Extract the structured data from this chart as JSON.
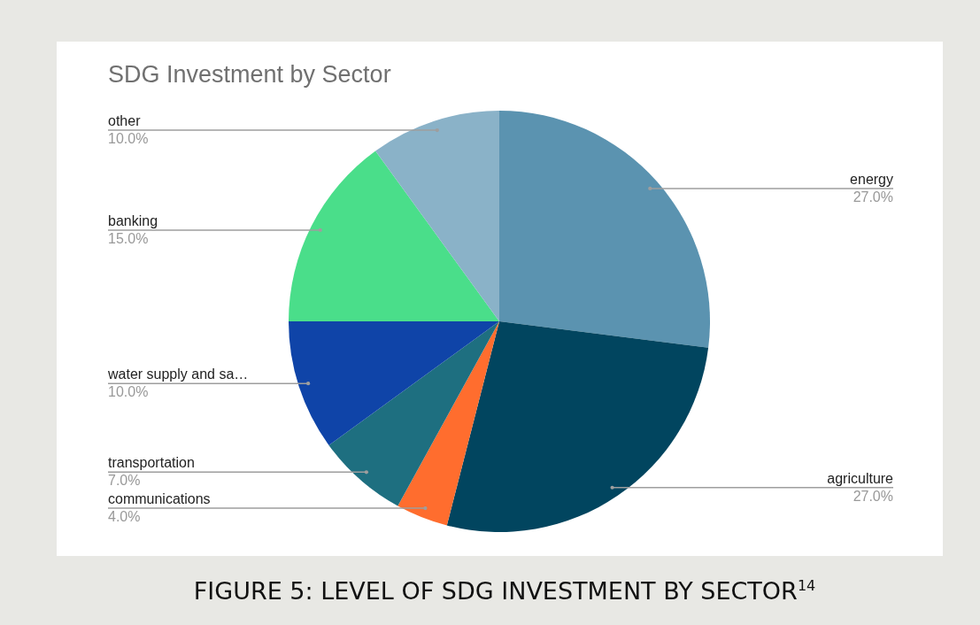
{
  "chart_data": {
    "type": "pie",
    "title": "SDG Investment by Sector",
    "categories": [
      "energy",
      "agriculture",
      "communications",
      "transportation",
      "water supply and sa…",
      "banking",
      "other"
    ],
    "values": [
      27,
      27,
      4,
      7,
      10,
      15,
      10
    ],
    "value_labels": [
      "27.0%",
      "27.0%",
      "4.0%",
      "7.0%",
      "10.0%",
      "15.0%",
      "10.0%"
    ],
    "colors": [
      "#5b93b0",
      "#01455f",
      "#ff6d2e",
      "#1e6f80",
      "#0f44a8",
      "#4ade8a",
      "#8ab2c8"
    ],
    "legend": false,
    "annotations": [
      "FIGURE 5:  LEVEL OF SDG INVESTMENT BY SECTOR$^{14}$"
    ]
  }
}
